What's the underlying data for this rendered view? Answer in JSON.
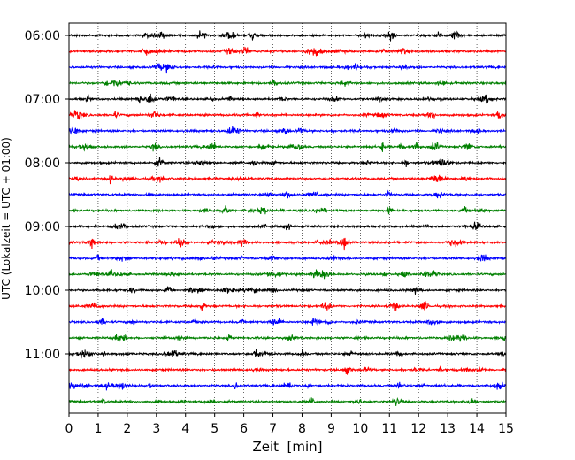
{
  "chart_data": {
    "type": "line",
    "title": "",
    "xlabel": "Zeit  [min]",
    "ylabel": "UTC (Lokalzeit = UTC + 01:00)",
    "xlim": [
      0,
      15
    ],
    "x_ticks": [
      "0",
      "1",
      "2",
      "3",
      "4",
      "5",
      "6",
      "7",
      "8",
      "9",
      "10",
      "11",
      "12",
      "13",
      "14",
      "15"
    ],
    "y_tick_labels": [
      "06:00",
      "07:00",
      "08:00",
      "09:00",
      "10:00",
      "11:00"
    ],
    "trace_start_times": [
      "06:00",
      "06:15",
      "06:30",
      "06:45",
      "07:00",
      "07:15",
      "07:30",
      "07:45",
      "08:00",
      "08:15",
      "08:30",
      "08:45",
      "09:00",
      "09:15",
      "09:30",
      "09:45",
      "10:00",
      "10:15",
      "10:30",
      "10:45",
      "11:00",
      "11:15",
      "11:30",
      "11:45"
    ],
    "trace_color_cycle": [
      "#000000",
      "#ff0000",
      "#0000ff",
      "#008000"
    ],
    "grid": "vertical dotted lines at each minute",
    "legend": "none",
    "series_description": "24 helicorder traces, 15 minutes each"
  }
}
